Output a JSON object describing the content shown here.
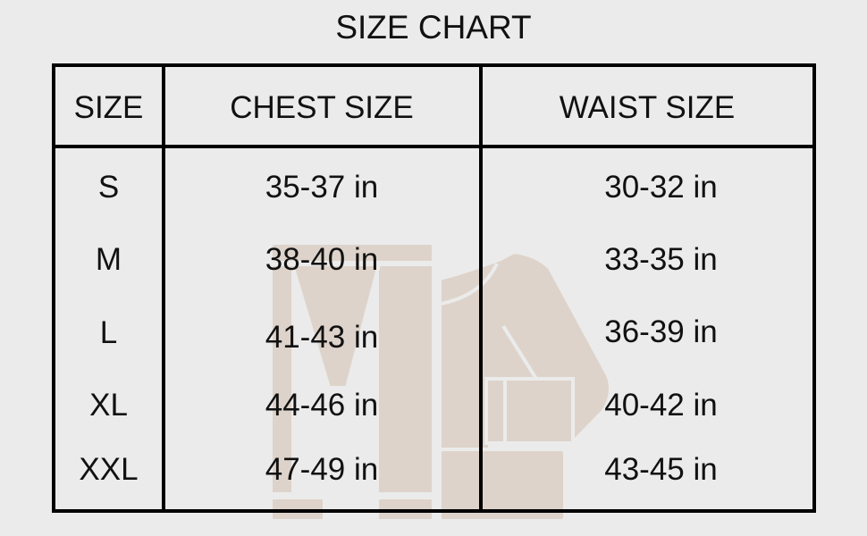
{
  "title": "SIZE CHART",
  "watermark_color": "#ddd3ca",
  "headers": [
    "SIZE",
    "CHEST SIZE",
    "WAIST SIZE"
  ],
  "rows": [
    {
      "size": "S",
      "chest": "35-37 in",
      "waist": "30-32 in"
    },
    {
      "size": "M",
      "chest": "38-40 in",
      "waist": "33-35 in"
    },
    {
      "size": "L",
      "chest": "41-43 in",
      "waist": "36-39 in"
    },
    {
      "size": "XL",
      "chest": "44-46 in",
      "waist": "40-42 in"
    },
    {
      "size": "XXL",
      "chest": "47-49 in",
      "waist": "43-45 in"
    }
  ]
}
